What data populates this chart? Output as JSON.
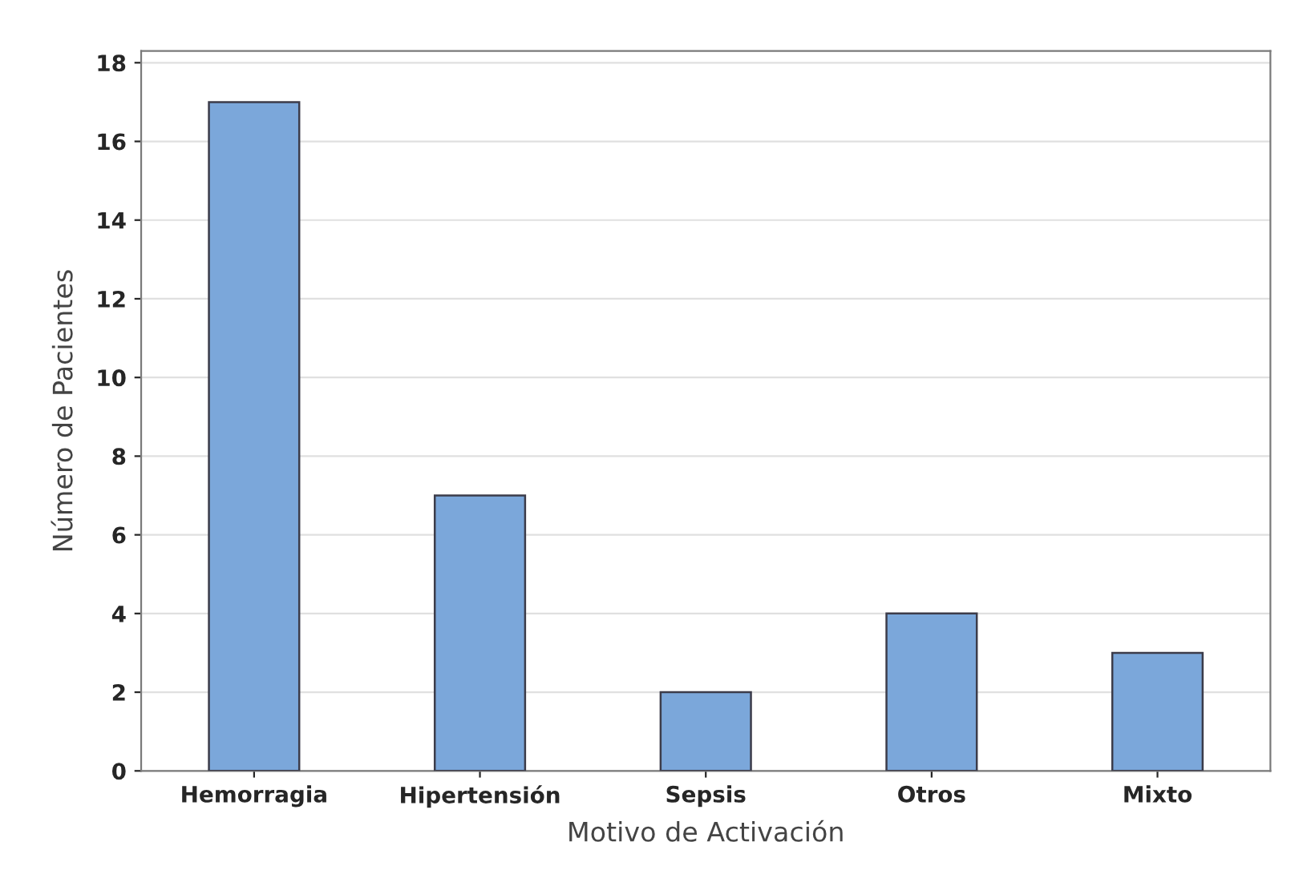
{
  "chart_data": {
    "type": "bar",
    "xlabel": "Motivo de Activación",
    "ylabel": "Número de Pacientes",
    "categories": [
      "Hemorragia",
      "Hipertensión",
      "Sepsis",
      "Otros",
      "Mixto"
    ],
    "values": [
      17,
      7,
      2,
      4,
      3
    ],
    "color": "#7ba7da",
    "ylim": [
      0,
      18.3
    ],
    "yticks": [
      0,
      2,
      4,
      6,
      8,
      10,
      12,
      14,
      16,
      18
    ],
    "grid": "y"
  }
}
